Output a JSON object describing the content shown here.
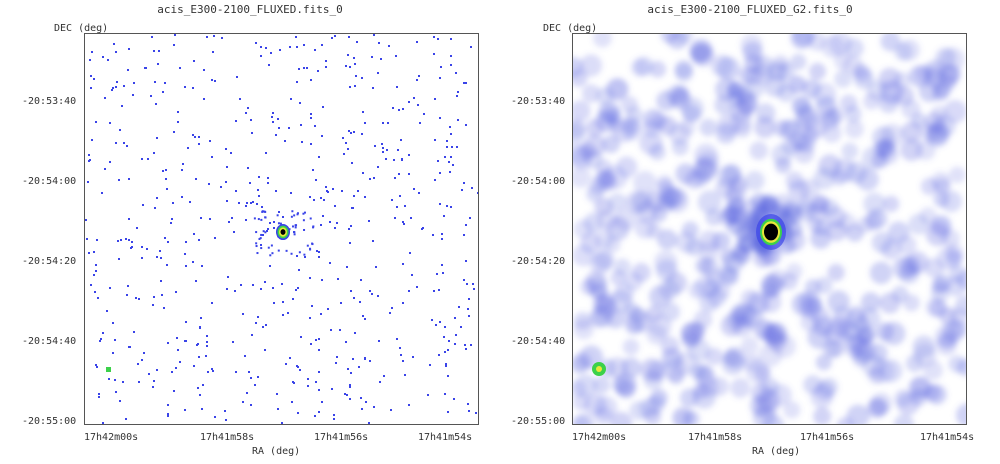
{
  "panels": [
    {
      "title": "acis_E300-2100_FLUXED.fits_0",
      "y_axis_label": "DEC (deg)",
      "x_axis_label": "RA (deg)",
      "y_ticks": [
        "-20:53:40",
        "-20:54:00",
        "-20:54:20",
        "-20:54:40",
        "-20:55:00"
      ],
      "x_ticks": [
        "17h42m00s",
        "17h41m58s",
        "17h41m56s",
        "17h41m54s"
      ],
      "image_style": "sparse-pixels"
    },
    {
      "title": "acis_E300-2100_FLUXED_G2.fits_0",
      "y_axis_label": "DEC (deg)",
      "x_axis_label": "RA (deg)",
      "y_ticks": [
        "-20:53:40",
        "-20:54:00",
        "-20:54:20",
        "-20:54:40",
        "-20:55:00"
      ],
      "x_ticks": [
        "17h42m00s",
        "17h41m58s",
        "17h41m56s",
        "17h41m54s"
      ],
      "image_style": "gaussian-smoothed"
    }
  ],
  "colors": {
    "pixel": "#3a44e8",
    "smooth": "#5c66e0",
    "source_core": "#000000",
    "source_ring_green": "#3cd14a",
    "source_ring_yellow": "#e8e83a"
  }
}
